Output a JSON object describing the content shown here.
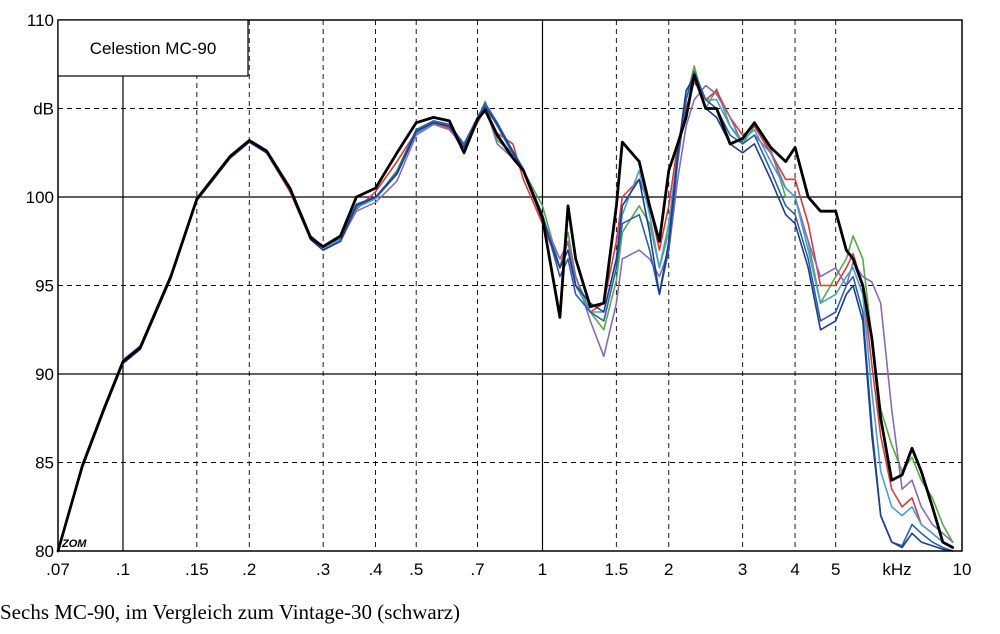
{
  "chart_data": {
    "type": "line",
    "title": "Celestion MC-90",
    "ylabel": "dB",
    "xlabel": "kHz",
    "xscale": "log",
    "xlim": [
      0.07,
      10
    ],
    "ylim": [
      80,
      110
    ],
    "grid": true,
    "x_ticks": [
      0.07,
      0.1,
      0.15,
      0.2,
      0.3,
      0.4,
      0.5,
      0.7,
      1,
      1.5,
      2,
      3,
      4,
      5,
      10
    ],
    "x_tick_labels": [
      ".07",
      ".1",
      ".15",
      ".2",
      ".3",
      ".4",
      ".5",
      ".7",
      "1",
      "1.5",
      "2",
      "3",
      "4",
      "5",
      "10"
    ],
    "y_ticks": [
      80,
      85,
      90,
      95,
      100,
      105,
      110
    ],
    "y_tick_labels": [
      "80",
      "85",
      "90",
      "95",
      "100",
      "",
      "110"
    ],
    "corner_mark": "ZOM",
    "series": [
      {
        "color": "#5aa84a",
        "x": [
          0.07,
          0.08,
          0.09,
          0.1,
          0.11,
          0.13,
          0.15,
          0.18,
          0.2,
          0.22,
          0.25,
          0.28,
          0.3,
          0.33,
          0.36,
          0.4,
          0.45,
          0.5,
          0.55,
          0.6,
          0.65,
          0.7,
          0.73,
          0.78,
          0.85,
          0.9,
          1,
          1.1,
          1.15,
          1.2,
          1.3,
          1.4,
          1.5,
          1.55,
          1.7,
          1.8,
          1.9,
          2,
          2.1,
          2.2,
          2.3,
          2.45,
          2.6,
          2.8,
          3,
          3.2,
          3.5,
          3.8,
          4,
          4.3,
          4.6,
          5,
          5.3,
          5.5,
          5.8,
          6.1,
          6.4,
          6.8,
          7.2,
          7.6,
          8,
          8.5,
          9,
          9.5
        ],
        "y": [
          80,
          84.8,
          88,
          90.7,
          91.5,
          95.5,
          99.9,
          102.3,
          103.2,
          102.6,
          100.5,
          97.8,
          97.1,
          97.7,
          99.5,
          99.9,
          101.5,
          103.8,
          104.3,
          104,
          103,
          104.4,
          105.4,
          103.2,
          102.5,
          101.5,
          99.5,
          96,
          98,
          95.5,
          93.5,
          92.5,
          95.3,
          98,
          99.5,
          98.5,
          96,
          98,
          102,
          105.5,
          107.4,
          105,
          106.1,
          104,
          103,
          104,
          102.7,
          100,
          100,
          97.5,
          94,
          95.5,
          96.5,
          97.8,
          96.5,
          92,
          88,
          86,
          84.5,
          85.3,
          84,
          83,
          81.5,
          80.5
        ]
      },
      {
        "color": "#d93a3a",
        "x": [
          0.07,
          0.08,
          0.09,
          0.1,
          0.11,
          0.13,
          0.15,
          0.18,
          0.2,
          0.22,
          0.25,
          0.28,
          0.3,
          0.33,
          0.36,
          0.4,
          0.45,
          0.5,
          0.55,
          0.6,
          0.65,
          0.7,
          0.73,
          0.78,
          0.85,
          0.9,
          1,
          1.1,
          1.15,
          1.2,
          1.3,
          1.4,
          1.5,
          1.55,
          1.7,
          1.8,
          1.9,
          2,
          2.1,
          2.2,
          2.3,
          2.45,
          2.6,
          2.8,
          3,
          3.2,
          3.5,
          3.8,
          4,
          4.3,
          4.6,
          5,
          5.3,
          5.5,
          5.8,
          6.1,
          6.4,
          6.8,
          7.2,
          7.6,
          8,
          8.5,
          9,
          9.5
        ],
        "y": [
          80,
          84.7,
          87.9,
          90.6,
          91.4,
          95.4,
          99.8,
          102.2,
          103.1,
          102.5,
          100.3,
          97.6,
          97,
          97.5,
          99.3,
          100.3,
          102,
          103.7,
          104.2,
          103.9,
          102.6,
          104.2,
          105,
          103.6,
          103,
          101,
          98.5,
          96,
          97.5,
          95,
          93.5,
          94,
          97.5,
          100,
          101,
          99.5,
          97,
          99.5,
          103,
          105,
          106.5,
          105.5,
          106,
          104.5,
          103.5,
          104,
          102.5,
          101,
          101,
          98.5,
          95,
          95,
          96,
          96.8,
          95,
          90.5,
          86.5,
          83.5,
          82.5,
          83,
          81.5,
          81,
          80.5,
          80.2
        ]
      },
      {
        "color": "#8a6bb3",
        "x": [
          0.07,
          0.08,
          0.09,
          0.1,
          0.11,
          0.13,
          0.15,
          0.18,
          0.2,
          0.22,
          0.25,
          0.28,
          0.3,
          0.33,
          0.36,
          0.4,
          0.45,
          0.5,
          0.55,
          0.6,
          0.65,
          0.7,
          0.73,
          0.78,
          0.85,
          0.9,
          1,
          1.1,
          1.15,
          1.2,
          1.3,
          1.4,
          1.5,
          1.55,
          1.7,
          1.8,
          1.9,
          2,
          2.1,
          2.2,
          2.3,
          2.45,
          2.6,
          2.8,
          3,
          3.2,
          3.5,
          3.8,
          4,
          4.3,
          4.6,
          5,
          5.3,
          5.5,
          5.8,
          6.1,
          6.4,
          6.8,
          7.2,
          7.6,
          8,
          8.5,
          9,
          9.5
        ],
        "y": [
          80,
          84.9,
          88.1,
          90.8,
          91.6,
          95.6,
          99.9,
          102.3,
          103.2,
          102.6,
          100.4,
          97.7,
          97.1,
          97.6,
          99.2,
          99.7,
          100.9,
          103.5,
          104.1,
          103.8,
          102.8,
          104.3,
          105.1,
          103,
          102.2,
          101.5,
          98.8,
          96.5,
          97.5,
          95.5,
          93,
          91,
          94,
          96.5,
          97,
          96.5,
          95.5,
          97,
          101,
          104,
          105.5,
          106.3,
          105.8,
          104.5,
          103,
          103.5,
          102.5,
          100.5,
          100,
          97.5,
          95.5,
          96,
          95,
          96.3,
          95.5,
          95.2,
          94,
          88,
          83.5,
          84,
          82.5,
          81.5,
          81,
          80.5
        ]
      },
      {
        "color": "#4a9ed1",
        "x": [
          0.07,
          0.08,
          0.09,
          0.1,
          0.11,
          0.13,
          0.15,
          0.18,
          0.2,
          0.22,
          0.25,
          0.28,
          0.3,
          0.33,
          0.36,
          0.4,
          0.45,
          0.5,
          0.55,
          0.6,
          0.65,
          0.7,
          0.73,
          0.78,
          0.85,
          0.9,
          1,
          1.1,
          1.15,
          1.2,
          1.3,
          1.4,
          1.5,
          1.55,
          1.7,
          1.8,
          1.9,
          2,
          2.1,
          2.2,
          2.3,
          2.45,
          2.6,
          2.8,
          3,
          3.2,
          3.5,
          3.8,
          4,
          4.3,
          4.6,
          5,
          5.3,
          5.5,
          5.8,
          6.1,
          6.4,
          6.8,
          7.2,
          7.6,
          8,
          8.5,
          9,
          9.5
        ],
        "y": [
          80,
          84.8,
          88,
          90.7,
          91.5,
          95.5,
          99.9,
          102.2,
          103.2,
          102.6,
          100.5,
          97.7,
          97.1,
          97.6,
          99.4,
          99.9,
          101.3,
          103.6,
          104.2,
          104,
          102.9,
          104.4,
          105.2,
          104,
          102.4,
          101.5,
          99,
          96,
          97,
          95,
          93.5,
          93.5,
          96.5,
          99,
          101.5,
          99,
          96,
          98.5,
          102.5,
          105.5,
          107,
          105.5,
          105.5,
          104,
          103.2,
          103.8,
          102,
          100.5,
          100,
          97,
          94,
          94.5,
          95.5,
          96,
          94.5,
          89,
          84.5,
          82.5,
          82,
          82.5,
          81.5,
          81,
          80.5,
          80.2
        ]
      },
      {
        "color": "#2e5fa8",
        "x": [
          0.07,
          0.08,
          0.09,
          0.1,
          0.11,
          0.13,
          0.15,
          0.18,
          0.2,
          0.22,
          0.25,
          0.28,
          0.3,
          0.33,
          0.36,
          0.4,
          0.45,
          0.5,
          0.55,
          0.6,
          0.65,
          0.7,
          0.73,
          0.78,
          0.85,
          0.9,
          1,
          1.1,
          1.15,
          1.2,
          1.3,
          1.4,
          1.5,
          1.55,
          1.7,
          1.8,
          1.9,
          2,
          2.1,
          2.2,
          2.3,
          2.45,
          2.6,
          2.8,
          3,
          3.2,
          3.5,
          3.8,
          4,
          4.3,
          4.6,
          5,
          5.3,
          5.5,
          5.8,
          6.1,
          6.4,
          6.8,
          7.2,
          7.6,
          8,
          8.5,
          9,
          9.5
        ],
        "y": [
          80,
          84.8,
          88,
          90.7,
          91.5,
          95.5,
          99.9,
          102.3,
          103.2,
          102.6,
          100.5,
          97.8,
          97.2,
          97.7,
          99.6,
          100,
          101.4,
          103.8,
          104.3,
          104.1,
          103,
          104.5,
          105.3,
          104.2,
          102.6,
          101.6,
          99,
          95.5,
          96.5,
          94.5,
          93.5,
          93,
          96,
          98.5,
          99,
          97,
          94.5,
          97,
          102,
          105.5,
          107.1,
          105.5,
          105,
          103.5,
          103,
          103.5,
          101.5,
          99.5,
          99,
          96.5,
          93,
          93.5,
          95,
          95.5,
          93.5,
          87,
          82,
          80.5,
          80.3,
          81.5,
          81,
          80.5,
          80.2,
          80
        ]
      },
      {
        "color": "#1b3f8a",
        "x": [
          0.07,
          0.08,
          0.09,
          0.1,
          0.11,
          0.13,
          0.15,
          0.18,
          0.2,
          0.22,
          0.25,
          0.28,
          0.3,
          0.33,
          0.36,
          0.4,
          0.45,
          0.5,
          0.55,
          0.6,
          0.65,
          0.7,
          0.73,
          0.78,
          0.85,
          0.9,
          1,
          1.1,
          1.15,
          1.2,
          1.3,
          1.4,
          1.5,
          1.55,
          1.7,
          1.8,
          1.9,
          2,
          2.1,
          2.2,
          2.3,
          2.45,
          2.6,
          2.8,
          3,
          3.2,
          3.5,
          3.8,
          4,
          4.3,
          4.6,
          5,
          5.3,
          5.5,
          5.8,
          6.1,
          6.4,
          6.8,
          7.2,
          7.6,
          8,
          8.5,
          9,
          9.5
        ],
        "y": [
          80,
          84.7,
          87.9,
          90.6,
          91.4,
          95.4,
          99.8,
          102.2,
          103.1,
          102.5,
          100.4,
          97.6,
          97,
          97.5,
          99.5,
          100,
          101.3,
          103.7,
          104.2,
          104,
          102.8,
          104.3,
          105.1,
          104.1,
          102.5,
          101.5,
          98.8,
          96,
          97,
          95,
          94,
          93.5,
          96.5,
          99.5,
          101,
          98,
          94.5,
          97.5,
          102.5,
          106,
          106.8,
          105,
          104.5,
          103,
          102.5,
          103,
          101,
          99,
          98.5,
          96,
          92.5,
          93,
          94.5,
          95,
          93,
          86.5,
          82,
          80.5,
          80.2,
          81,
          80.5,
          80.3,
          80.1,
          80
        ]
      },
      {
        "color": "#000000",
        "x": [
          0.07,
          0.08,
          0.09,
          0.1,
          0.11,
          0.13,
          0.15,
          0.18,
          0.2,
          0.22,
          0.25,
          0.28,
          0.3,
          0.33,
          0.36,
          0.4,
          0.45,
          0.5,
          0.55,
          0.6,
          0.65,
          0.7,
          0.73,
          0.78,
          0.85,
          0.9,
          1,
          1.1,
          1.15,
          1.2,
          1.3,
          1.4,
          1.5,
          1.55,
          1.7,
          1.8,
          1.9,
          2,
          2.1,
          2.2,
          2.3,
          2.45,
          2.6,
          2.8,
          3,
          3.2,
          3.5,
          3.8,
          4,
          4.3,
          4.6,
          5,
          5.3,
          5.5,
          5.8,
          6.1,
          6.4,
          6.8,
          7.2,
          7.6,
          8,
          8.5,
          9,
          9.5
        ],
        "y": [
          80,
          84.8,
          88,
          90.7,
          91.5,
          95.5,
          99.9,
          102.3,
          103.2,
          102.6,
          100.5,
          97.7,
          97.2,
          97.8,
          100,
          100.5,
          102.5,
          104.2,
          104.5,
          104.3,
          102.5,
          104.4,
          104.9,
          103.5,
          102.2,
          101.5,
          98.8,
          93.2,
          99.5,
          96.5,
          93.8,
          94,
          99.5,
          103.1,
          102,
          99.5,
          97.5,
          101.5,
          103,
          104.5,
          106.9,
          105,
          105,
          103,
          103.3,
          104.2,
          102.8,
          102,
          102.8,
          100,
          99.2,
          99.2,
          97,
          96.5,
          95,
          92,
          87.5,
          84,
          84.3,
          85.8,
          84.5,
          82.5,
          80.5,
          80.2
        ]
      }
    ]
  },
  "caption": "Sechs MC-90, im Vergleich zum Vintage-30 (schwarz)"
}
